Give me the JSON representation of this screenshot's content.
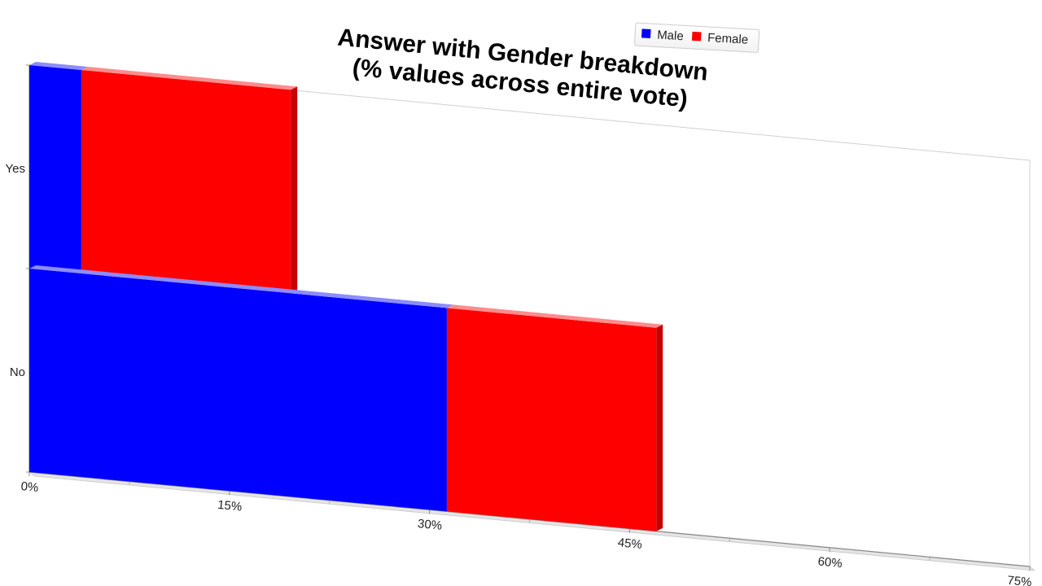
{
  "chart_data": {
    "type": "bar",
    "orientation": "horizontal",
    "stacked": true,
    "three_d": true,
    "title": [
      "Answer with Gender breakdown",
      "(% values across entire vote)"
    ],
    "categories": [
      "Yes",
      "No"
    ],
    "series": [
      {
        "name": "Male",
        "color": "#0000ff",
        "values": [
          3.9,
          31.3
        ]
      },
      {
        "name": "Female",
        "color": "#ff0000",
        "values": [
          15.7,
          15.7
        ]
      }
    ],
    "x_ticks": [
      "0%",
      "15%",
      "30%",
      "45%",
      "60%",
      "75%"
    ],
    "xlim": [
      0,
      75
    ],
    "legend": {
      "position": "top-right",
      "items": [
        "Male",
        "Female"
      ]
    }
  }
}
